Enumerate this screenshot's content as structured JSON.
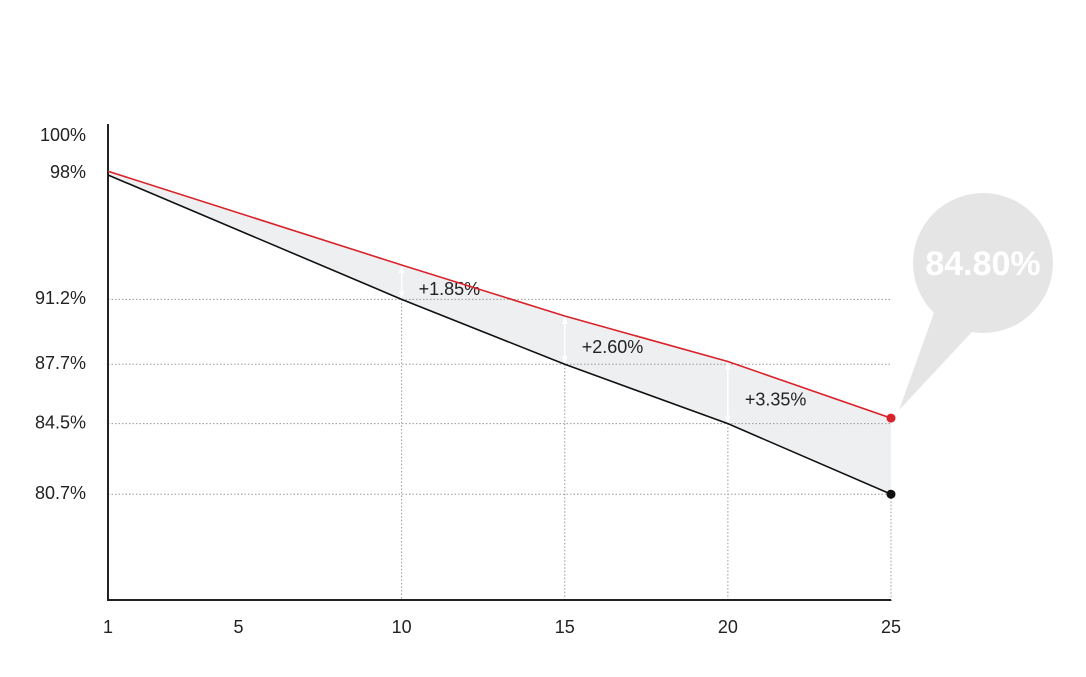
{
  "chart_data": {
    "type": "line",
    "xlim": [
      1,
      25
    ],
    "xticks": [
      1,
      5,
      10,
      15,
      20,
      25
    ],
    "ylim": [
      75,
      100
    ],
    "yticks": [
      {
        "value": 100,
        "label": "100%"
      },
      {
        "value": 98,
        "label": "98%"
      },
      {
        "value": 91.2,
        "label": "91.2%"
      },
      {
        "value": 87.7,
        "label": "87.7%"
      },
      {
        "value": 84.5,
        "label": "84.5%"
      },
      {
        "value": 80.7,
        "label": "80.7%"
      }
    ],
    "series": [
      {
        "color": "#d9232a",
        "x": [
          1,
          10,
          15,
          20,
          25
        ],
        "values": [
          98.1,
          93.05,
          90.3,
          87.85,
          84.8
        ],
        "callout": "84.80%"
      },
      {
        "color": "#111111",
        "x": [
          1,
          10,
          15,
          20,
          25
        ],
        "values": [
          97.9,
          91.2,
          87.7,
          84.5,
          80.7
        ]
      }
    ],
    "annotations": [
      {
        "x": 10,
        "text": "+1.85%"
      },
      {
        "x": 15,
        "text": "+2.60%"
      },
      {
        "x": 20,
        "text": "+3.35%"
      }
    ]
  }
}
